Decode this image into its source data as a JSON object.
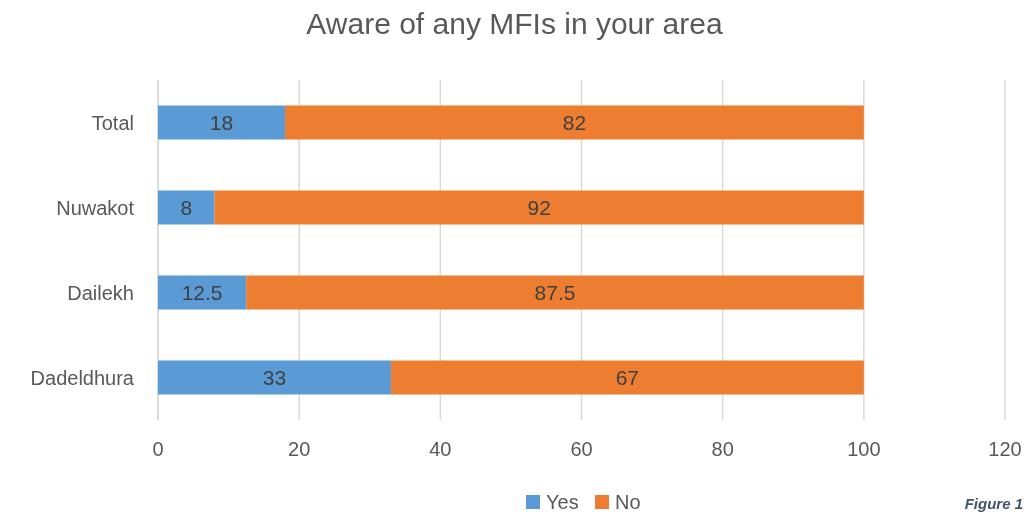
{
  "chart_data": {
    "type": "bar",
    "orientation": "horizontal",
    "stacked": true,
    "title": "Aware of any MFIs in your area",
    "categories": [
      "Total",
      "Nuwakot",
      "Dailekh",
      "Dadeldhura"
    ],
    "series": [
      {
        "name": "Yes",
        "color": "#5b9bd5",
        "values": [
          18,
          8,
          12.5,
          33
        ]
      },
      {
        "name": "No",
        "color": "#ed7d31",
        "values": [
          82,
          92,
          87.5,
          67
        ]
      }
    ],
    "xlim": [
      0,
      120
    ],
    "xticks": [
      0,
      20,
      40,
      60,
      80,
      100,
      120
    ],
    "grid": "x",
    "legend": "bottom",
    "data_labels": true,
    "annotations": [
      "Figure 1"
    ]
  }
}
